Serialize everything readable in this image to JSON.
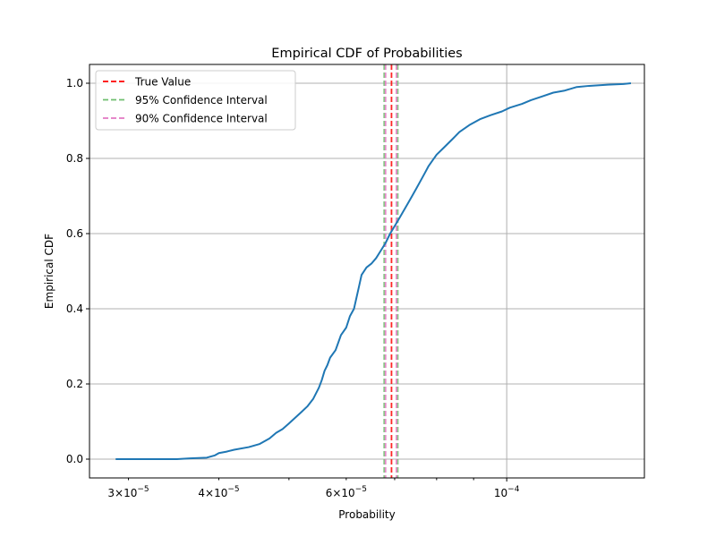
{
  "chart_data": {
    "type": "line",
    "title": "Empirical CDF of Probabilities",
    "xlabel": "Probability",
    "ylabel": "Empirical CDF",
    "x_scale": "log",
    "xlim": [
      2.65e-05,
      0.000155
    ],
    "ylim": [
      -0.05,
      1.05
    ],
    "grid": true,
    "legend_position": "top-left",
    "colors": {
      "ecdf": "#1f77b4",
      "true_value": "#ff0000",
      "ci95": "#6fbf6f",
      "ci90": "#e377c2",
      "grid": "#b0b0b0"
    },
    "y_ticks": [
      {
        "value": 0.0,
        "label": "0.0"
      },
      {
        "value": 0.2,
        "label": "0.2"
      },
      {
        "value": 0.4,
        "label": "0.4"
      },
      {
        "value": 0.6,
        "label": "0.6"
      },
      {
        "value": 0.8,
        "label": "0.8"
      },
      {
        "value": 1.0,
        "label": "1.0"
      }
    ],
    "x_major_ticks": [
      {
        "value": 0.0001,
        "base": "10",
        "exp": "−4"
      }
    ],
    "x_minor_ticks": [
      {
        "value": 3e-05,
        "coef": "3",
        "exp": "−5"
      },
      {
        "value": 4e-05,
        "coef": "4",
        "exp": "−5"
      },
      {
        "value": 6e-05,
        "coef": "6",
        "exp": "−5"
      }
    ],
    "x_minor_unlabeled": [
      5e-05,
      7e-05,
      8e-05,
      9e-05
    ],
    "series": [
      {
        "name": "ECDF",
        "points": [
          [
            2.88e-05,
            0.0
          ],
          [
            3.5e-05,
            0.0
          ],
          [
            3.65e-05,
            0.002
          ],
          [
            3.85e-05,
            0.004
          ],
          [
            3.95e-05,
            0.01
          ],
          [
            4e-05,
            0.016
          ],
          [
            4.1e-05,
            0.02
          ],
          [
            4.2e-05,
            0.025
          ],
          [
            4.4e-05,
            0.032
          ],
          [
            4.55e-05,
            0.04
          ],
          [
            4.7e-05,
            0.055
          ],
          [
            4.8e-05,
            0.07
          ],
          [
            4.9e-05,
            0.08
          ],
          [
            5e-05,
            0.095
          ],
          [
            5.1e-05,
            0.11
          ],
          [
            5.2e-05,
            0.125
          ],
          [
            5.3e-05,
            0.14
          ],
          [
            5.4e-05,
            0.16
          ],
          [
            5.5e-05,
            0.19
          ],
          [
            5.55e-05,
            0.21
          ],
          [
            5.6e-05,
            0.235
          ],
          [
            5.65e-05,
            0.25
          ],
          [
            5.7e-05,
            0.27
          ],
          [
            5.8e-05,
            0.29
          ],
          [
            5.85e-05,
            0.31
          ],
          [
            5.9e-05,
            0.33
          ],
          [
            6e-05,
            0.35
          ],
          [
            6.07e-05,
            0.38
          ],
          [
            6.15e-05,
            0.4
          ],
          [
            6.2e-05,
            0.43
          ],
          [
            6.25e-05,
            0.46
          ],
          [
            6.3e-05,
            0.49
          ],
          [
            6.4e-05,
            0.51
          ],
          [
            6.5e-05,
            0.52
          ],
          [
            6.6e-05,
            0.535
          ],
          [
            6.7e-05,
            0.555
          ],
          [
            6.8e-05,
            0.575
          ],
          [
            6.9e-05,
            0.6
          ],
          [
            7e-05,
            0.62
          ],
          [
            7.1e-05,
            0.64
          ],
          [
            7.2e-05,
            0.66
          ],
          [
            7.3e-05,
            0.68
          ],
          [
            7.4e-05,
            0.7
          ],
          [
            7.5e-05,
            0.72
          ],
          [
            7.6e-05,
            0.74
          ],
          [
            7.7e-05,
            0.76
          ],
          [
            7.8e-05,
            0.78
          ],
          [
            7.9e-05,
            0.795
          ],
          [
            8e-05,
            0.81
          ],
          [
            8.2e-05,
            0.83
          ],
          [
            8.4e-05,
            0.85
          ],
          [
            8.6e-05,
            0.87
          ],
          [
            8.9e-05,
            0.89
          ],
          [
            9.2e-05,
            0.905
          ],
          [
            9.5e-05,
            0.915
          ],
          [
            9.85e-05,
            0.925
          ],
          [
            0.000101,
            0.935
          ],
          [
            0.000105,
            0.945
          ],
          [
            0.000108,
            0.955
          ],
          [
            0.000112,
            0.965
          ],
          [
            0.000116,
            0.975
          ],
          [
            0.00012,
            0.98
          ],
          [
            0.000125,
            0.99
          ],
          [
            0.00013,
            0.993
          ],
          [
            0.000138,
            0.996
          ],
          [
            0.000145,
            0.998
          ],
          [
            0.0001485,
            1.0
          ]
        ]
      }
    ],
    "vertical_lines": [
      {
        "name": "True Value",
        "x": 6.93e-05,
        "color": "#ff0000"
      },
      {
        "name": "95% Confidence Interval",
        "x": 6.77e-05,
        "color": "#6fbf6f"
      },
      {
        "name": "95% Confidence Interval",
        "x": 7.07e-05,
        "color": "#6fbf6f"
      },
      {
        "name": "90% Confidence Interval",
        "x": 6.8e-05,
        "color": "#e377c2"
      },
      {
        "name": "90% Confidence Interval",
        "x": 7.04e-05,
        "color": "#e377c2"
      }
    ],
    "legend": [
      {
        "label": "True Value",
        "color": "#ff0000"
      },
      {
        "label": "95% Confidence Interval",
        "color": "#6fbf6f"
      },
      {
        "label": "90% Confidence Interval",
        "color": "#e377c2"
      }
    ]
  }
}
